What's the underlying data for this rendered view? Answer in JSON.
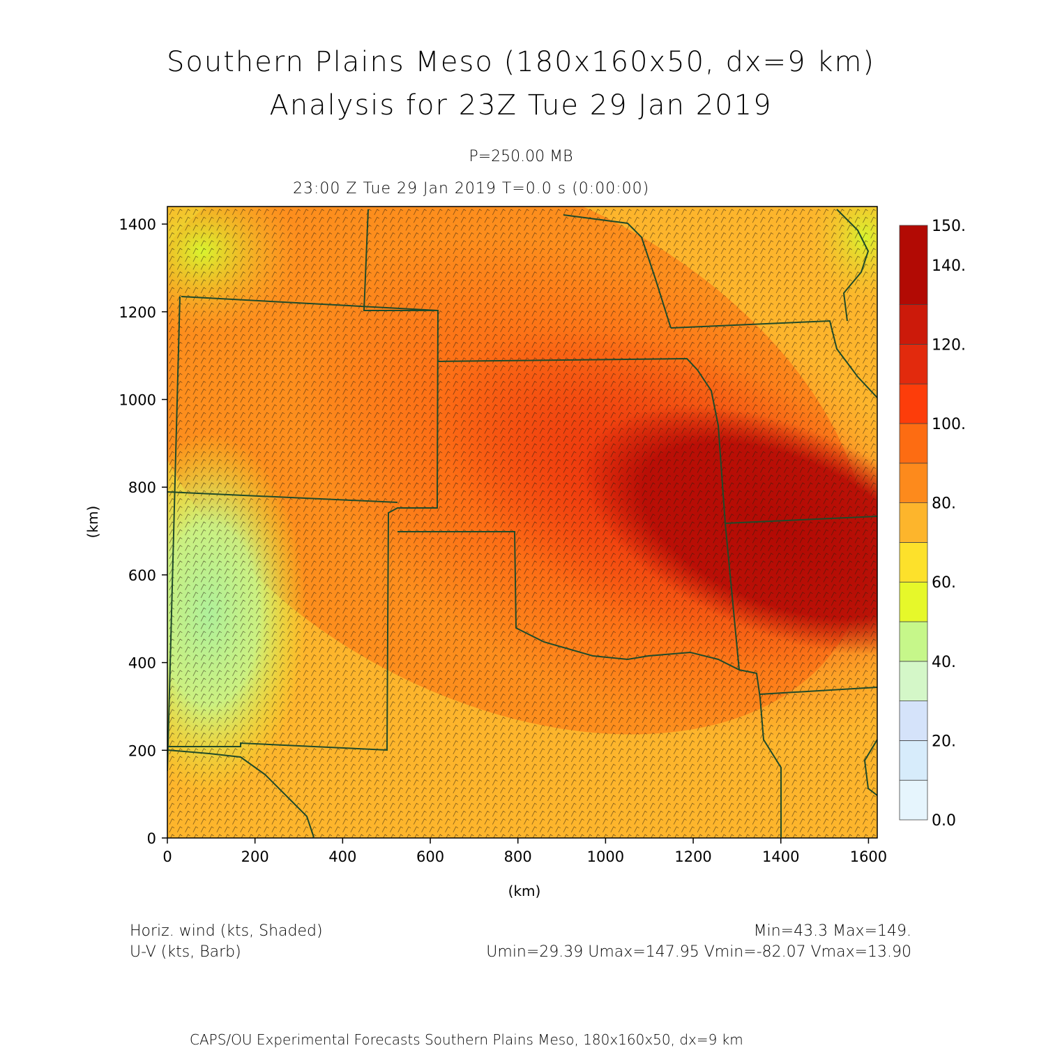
{
  "header": {
    "title_line1": "Southern Plains Meso (180x160x50, dx=9 km)",
    "title_line2": "Analysis for 23Z Tue 29 Jan 2019",
    "level": "P=250.00 MB",
    "time_line": "23:00 Z Tue 29 Jan 2019    T=0.0 s (0:00:00)"
  },
  "axes": {
    "x_label": "(km)",
    "y_label": "(km)",
    "x_ticks": [
      "0",
      "200",
      "400",
      "600",
      "800",
      "1000",
      "1200",
      "1400",
      "1600"
    ],
    "y_ticks": [
      "0",
      "200",
      "400",
      "600",
      "800",
      "1000",
      "1200",
      "1400"
    ],
    "x_range_km": [
      0,
      1620
    ],
    "y_range_km": [
      0,
      1440
    ]
  },
  "colorbar": {
    "tick_labels": [
      "0.0",
      "20.",
      "40.",
      "60.",
      "80.",
      "100.",
      "120.",
      "140.",
      "150."
    ],
    "tick_values": [
      0,
      20,
      40,
      60,
      80,
      100,
      120,
      140,
      150
    ],
    "colors": [
      "#e6f5fd",
      "#d7ecfb",
      "#d5e3fa",
      "#d4f7c8",
      "#c6f78a",
      "#e6f82a",
      "#fde12b",
      "#fdb52c",
      "#fd8a1c",
      "#fd6c12",
      "#fd3d0a",
      "#e22a0d",
      "#cc1a0a",
      "#b20a04"
    ]
  },
  "field": {
    "min_label": "Min=43.3 Max=149.",
    "uv_range_label": "Umin=29.39 Umax=147.95 Vmin=-82.07 Vmax=13.90",
    "shaded_desc": "Horiz. wind (kts, Shaded)",
    "barb_desc": "U-V (kts, Barb)",
    "border_color": "#1f4a2a"
  },
  "footer": {
    "credit": "CAPS/OU Experimental Forecasts  Southern Plains Meso, 180x160x50, dx=9 km"
  }
}
